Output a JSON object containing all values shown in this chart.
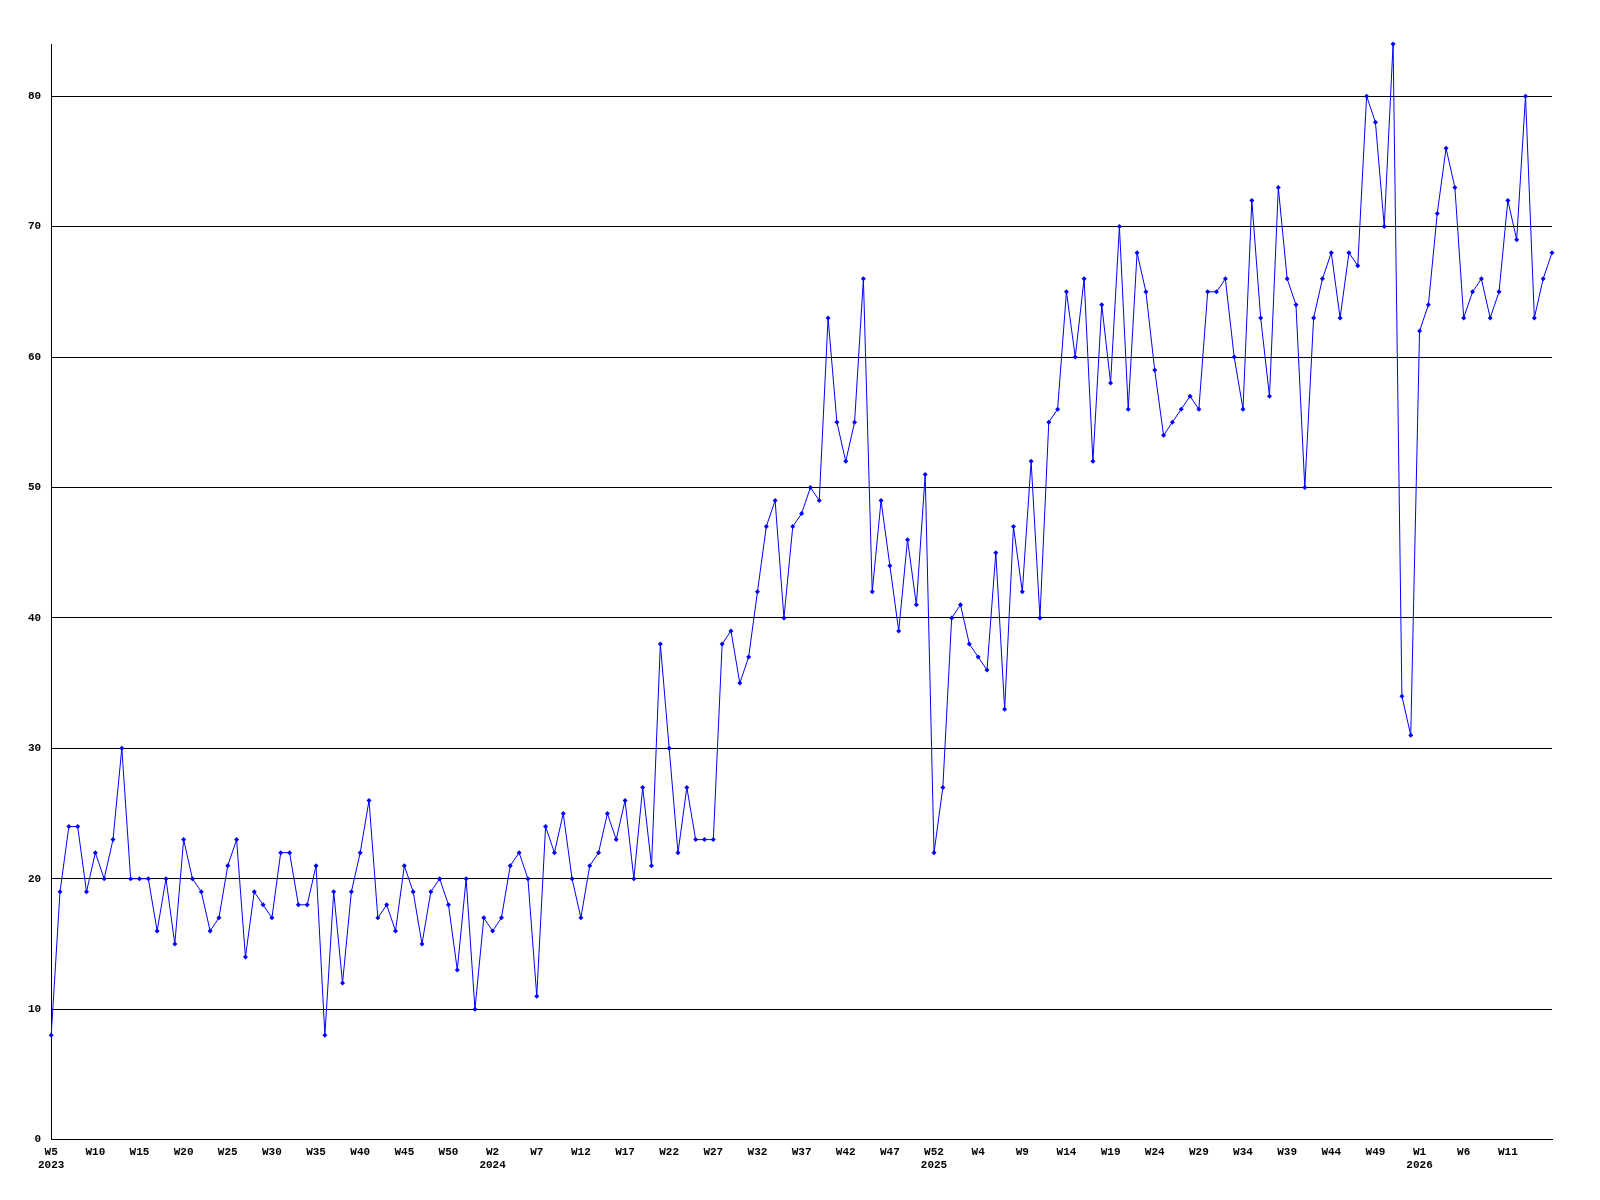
{
  "chart_data": {
    "type": "line",
    "categories": [
      "W5\n2023",
      null,
      null,
      null,
      null,
      "W10",
      null,
      null,
      null,
      null,
      "W15",
      null,
      null,
      null,
      null,
      "W20",
      null,
      null,
      null,
      null,
      "W25",
      null,
      null,
      null,
      null,
      "W30",
      null,
      null,
      null,
      null,
      "W35",
      null,
      null,
      null,
      null,
      "W40",
      null,
      null,
      null,
      null,
      "W45",
      null,
      null,
      null,
      null,
      "W50",
      null,
      null,
      null,
      null,
      "W2\n2024",
      null,
      null,
      null,
      null,
      "W7",
      null,
      null,
      null,
      null,
      "W12",
      null,
      null,
      null,
      null,
      "W17",
      null,
      null,
      null,
      null,
      "W22",
      null,
      null,
      null,
      null,
      "W27",
      null,
      null,
      null,
      null,
      "W32",
      null,
      null,
      null,
      null,
      "W37",
      null,
      null,
      null,
      null,
      "W42",
      null,
      null,
      null,
      null,
      "W47",
      null,
      null,
      null,
      null,
      "W52\n2025",
      null,
      null,
      null,
      null,
      "W4",
      null,
      null,
      null,
      null,
      "W9",
      null,
      null,
      null,
      null,
      "W14",
      null,
      null,
      null,
      null,
      "W19",
      null,
      null,
      null,
      null,
      "W24",
      null,
      null,
      null,
      null,
      "W29",
      null,
      null,
      null,
      null,
      "W34",
      null,
      null,
      null,
      null,
      "W39",
      null,
      null,
      null,
      null,
      "W44",
      null,
      null,
      null,
      null,
      "W49",
      null,
      null,
      null,
      null,
      "W1\n2026",
      null,
      null,
      null,
      null,
      "W6",
      null,
      null,
      null,
      null,
      "W11",
      null,
      null,
      null,
      null,
      null
    ],
    "series": [
      {
        "color": "#0000ff",
        "values": [
          8,
          19,
          24,
          24,
          19,
          22,
          20,
          23,
          30,
          20,
          20,
          20,
          16,
          20,
          15,
          23,
          20,
          19,
          16,
          17,
          21,
          23,
          14,
          19,
          18,
          17,
          22,
          22,
          18,
          18,
          21,
          8,
          19,
          12,
          19,
          22,
          26,
          17,
          18,
          16,
          21,
          19,
          15,
          19,
          20,
          18,
          13,
          20,
          10,
          17,
          16,
          17,
          21,
          22,
          20,
          11,
          24,
          22,
          25,
          20,
          17,
          21,
          22,
          25,
          23,
          26,
          20,
          27,
          21,
          38,
          30,
          22,
          27,
          23,
          23,
          23,
          38,
          39,
          35,
          37,
          42,
          47,
          49,
          40,
          47,
          48,
          50,
          49,
          63,
          55,
          52,
          55,
          66,
          42,
          49,
          44,
          39,
          46,
          41,
          51,
          22,
          27,
          40,
          41,
          38,
          37,
          36,
          45,
          33,
          47,
          42,
          52,
          40,
          55,
          56,
          65,
          60,
          66,
          52,
          64,
          58,
          70,
          56,
          68,
          65,
          59,
          54,
          55,
          56,
          57,
          56,
          65,
          65,
          66,
          60,
          56,
          72,
          63,
          57,
          73,
          66,
          64,
          50,
          63,
          66,
          68,
          63,
          68,
          67,
          80,
          78,
          70,
          84,
          34,
          31,
          62,
          64,
          71,
          76,
          73,
          63,
          65,
          66,
          63,
          65,
          72,
          69,
          80,
          63,
          66,
          68
        ]
      }
    ],
    "ylim": [
      0,
      84
    ],
    "yticks": [
      0,
      10,
      20,
      30,
      40,
      50,
      60,
      70,
      80
    ],
    "grid": "y",
    "marker": "diamond",
    "line_style": "solid",
    "legend": false
  }
}
